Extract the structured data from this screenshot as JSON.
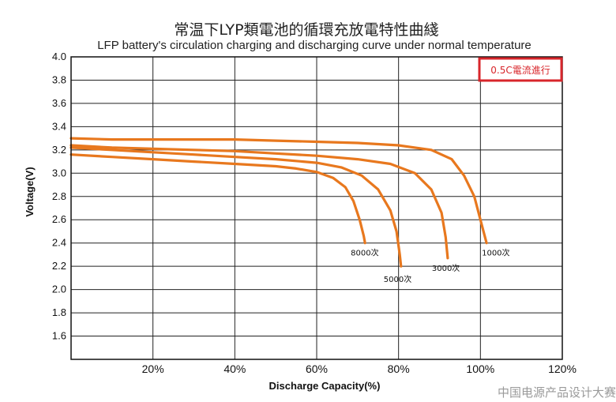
{
  "chart_data": {
    "type": "line",
    "title": "常温下LYP類電池的循環充放電特性曲綫",
    "subtitle": "LFP battery's circulation charging and discharging curve under normal temperature",
    "xlabel": "Discharge Capacity(%)",
    "ylabel": "Voltage(V)",
    "xlim": [
      0,
      120
    ],
    "ylim": [
      1.4,
      4.0
    ],
    "x_ticks": [
      20,
      40,
      60,
      80,
      100,
      120
    ],
    "x_tick_labels": [
      "20%",
      "40%",
      "60%",
      "80%",
      "100%",
      "120%"
    ],
    "y_ticks": [
      1.6,
      1.8,
      2.0,
      2.2,
      2.4,
      2.6,
      2.8,
      3.0,
      3.2,
      3.4,
      3.6,
      3.8,
      4.0
    ],
    "y_tick_labels": [
      "1.6",
      "1.8",
      "2.0",
      "2.2",
      "2.4",
      "2.6",
      "2.8",
      "3.0",
      "3.2",
      "3.4",
      "3.6",
      "3.8",
      "4.0"
    ],
    "grid": true,
    "condition_label": "0.5C電流進行",
    "line_color": "#e8781e",
    "series": [
      {
        "name": "8000次",
        "x": [
          0,
          10,
          20,
          30,
          40,
          50,
          55,
          60,
          64,
          67,
          69,
          70.5,
          71.5,
          71.8
        ],
        "y": [
          3.16,
          3.14,
          3.12,
          3.1,
          3.08,
          3.06,
          3.04,
          3.01,
          2.96,
          2.88,
          2.76,
          2.6,
          2.46,
          2.4
        ]
      },
      {
        "name": "5000次",
        "x": [
          0,
          10,
          20,
          30,
          40,
          50,
          60,
          66,
          71,
          75,
          78,
          79.5,
          80.3,
          80.6
        ],
        "y": [
          3.22,
          3.2,
          3.18,
          3.16,
          3.14,
          3.12,
          3.09,
          3.05,
          2.98,
          2.86,
          2.68,
          2.5,
          2.3,
          2.2
        ]
      },
      {
        "name": "3000次",
        "x": [
          0,
          10,
          20,
          30,
          40,
          50,
          60,
          70,
          78,
          84,
          88,
          90.5,
          91.5,
          92
        ],
        "y": [
          3.24,
          3.22,
          3.21,
          3.2,
          3.19,
          3.17,
          3.15,
          3.12,
          3.08,
          3.0,
          2.86,
          2.66,
          2.45,
          2.27
        ]
      },
      {
        "name": "1000次",
        "x": [
          0,
          10,
          20,
          30,
          40,
          50,
          60,
          70,
          80,
          88,
          93,
          96,
          98.5,
          100,
          101.5
        ],
        "y": [
          3.3,
          3.29,
          3.29,
          3.29,
          3.29,
          3.28,
          3.27,
          3.26,
          3.24,
          3.2,
          3.12,
          2.98,
          2.8,
          2.6,
          2.4
        ]
      }
    ]
  },
  "watermark": "中国电源产品设计大赛"
}
